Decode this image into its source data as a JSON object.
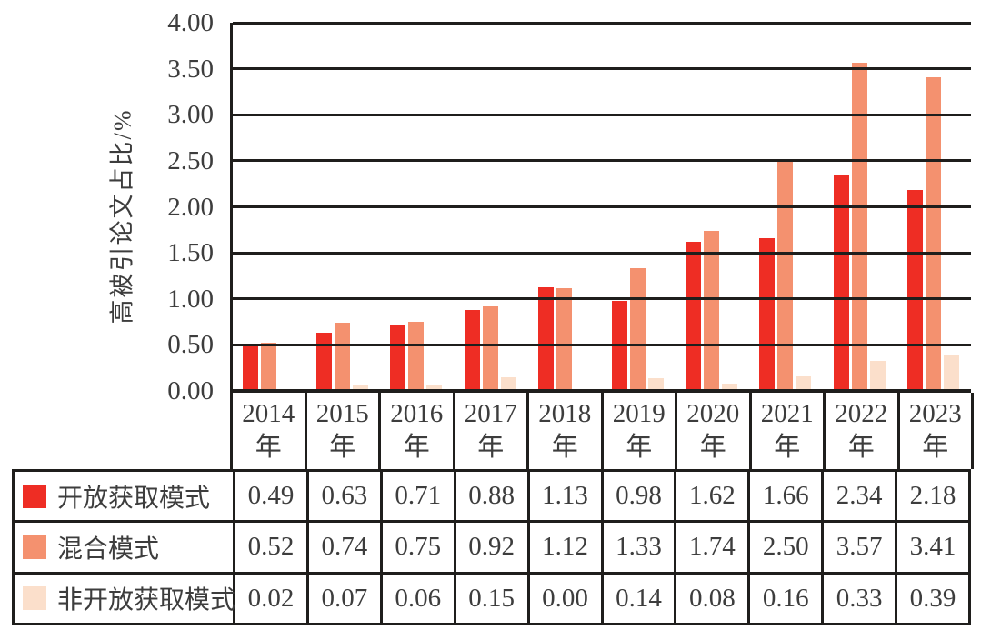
{
  "chart_data": {
    "type": "bar",
    "title": "",
    "xlabel": "",
    "ylabel": "高被引论文占比/%",
    "ylim": [
      0,
      4
    ],
    "ytick_step": 0.5,
    "ytick_labels": [
      "4.00",
      "3.50",
      "3.00",
      "2.50",
      "2.00",
      "1.50",
      "1.00",
      "0.50",
      "0.00"
    ],
    "grid": true,
    "legend_position": "table-rows-left",
    "categories": [
      "2014",
      "2015",
      "2016",
      "2017",
      "2018",
      "2019",
      "2020",
      "2021",
      "2022",
      "2023"
    ],
    "category_suffix": "年",
    "series": [
      {
        "name": "开放获取模式",
        "color": "#EE2D24",
        "values": [
          0.49,
          0.63,
          0.71,
          0.88,
          1.13,
          0.98,
          1.62,
          1.66,
          2.34,
          2.18
        ]
      },
      {
        "name": "混合模式",
        "color": "#F4916F",
        "values": [
          0.52,
          0.74,
          0.75,
          0.92,
          1.12,
          1.33,
          1.74,
          2.5,
          3.57,
          3.41
        ]
      },
      {
        "name": "非开放获取模式",
        "color": "#FBDFCB",
        "values": [
          0.02,
          0.07,
          0.06,
          0.15,
          0.0,
          0.14,
          0.08,
          0.16,
          0.33,
          0.39
        ]
      }
    ]
  },
  "table": {
    "rows": [
      {
        "label": "开放获取模式",
        "swatch_color": "#EE2D24",
        "values": [
          "0.49",
          "0.63",
          "0.71",
          "0.88",
          "1.13",
          "0.98",
          "1.62",
          "1.66",
          "2.34",
          "2.18"
        ]
      },
      {
        "label": "混合模式",
        "swatch_color": "#F4916F",
        "values": [
          "0.52",
          "0.74",
          "0.75",
          "0.92",
          "1.12",
          "1.33",
          "1.74",
          "2.50",
          "3.57",
          "3.41"
        ]
      },
      {
        "label": "非开放获取模式",
        "swatch_color": "#FBDFCB",
        "values": [
          "0.02",
          "0.07",
          "0.06",
          "0.15",
          "0.00",
          "0.14",
          "0.08",
          "0.16",
          "0.33",
          "0.39"
        ]
      }
    ]
  },
  "colors": {
    "line": "#1F1E1C",
    "text": "#3D3D3D",
    "background": "#FFFFFF"
  }
}
